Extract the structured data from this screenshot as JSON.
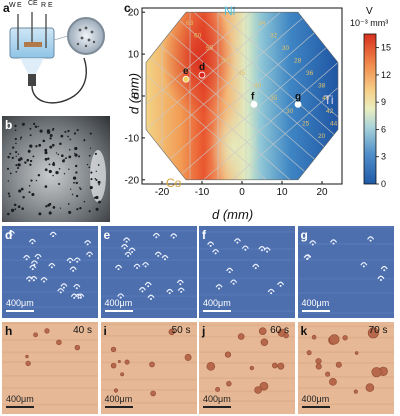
{
  "panels": {
    "a": {
      "label": "a",
      "electrodes": [
        "W",
        "E",
        "CE",
        "R",
        "E"
      ]
    },
    "b": {
      "label": "b"
    },
    "c": {
      "label": "c",
      "corner_labels": {
        "ni": "Ni",
        "co": "Co",
        "ti": "Ti"
      },
      "points": [
        "e",
        "d",
        "f",
        "g"
      ],
      "contour_labels": [
        "63",
        "60",
        "55",
        "50",
        "45",
        "40",
        "35",
        "30",
        "25",
        "20",
        "34",
        "32",
        "30",
        "28",
        "36",
        "38",
        "40",
        "42",
        "44"
      ]
    },
    "micrographs_top": [
      {
        "label": "d",
        "scale": "400μm"
      },
      {
        "label": "e",
        "scale": "400μm"
      },
      {
        "label": "f",
        "scale": "400μm"
      },
      {
        "label": "g",
        "scale": "400μm"
      }
    ],
    "micrographs_bottom": [
      {
        "label": "h",
        "time": "40 s",
        "scale": "400μm"
      },
      {
        "label": "i",
        "time": "50 s",
        "scale": "400μm"
      },
      {
        "label": "j",
        "time": "60 s",
        "scale": "400μm"
      },
      {
        "label": "k",
        "time": "70 s",
        "scale": "400μm"
      }
    ]
  },
  "chart_data": {
    "type": "heatmap",
    "xlabel": "d (mm)",
    "ylabel": "d (mm)",
    "xlim": [
      -25,
      25
    ],
    "ylim": [
      -21,
      21
    ],
    "xticks": [
      -20,
      -10,
      0,
      10,
      20
    ],
    "yticks": [
      20,
      10,
      0,
      -10,
      -20
    ],
    "colorbar": {
      "title": "V",
      "unit": "10⁻³ mm³",
      "ticks": [
        0,
        3,
        6,
        9,
        12,
        15
      ],
      "range": [
        0,
        16.5
      ]
    },
    "marked_points": [
      {
        "name": "e",
        "x": -14,
        "y": 4
      },
      {
        "name": "d",
        "x": -10,
        "y": 5
      },
      {
        "name": "f",
        "x": 3,
        "y": -2
      },
      {
        "name": "g",
        "x": 14,
        "y": -2
      }
    ]
  }
}
